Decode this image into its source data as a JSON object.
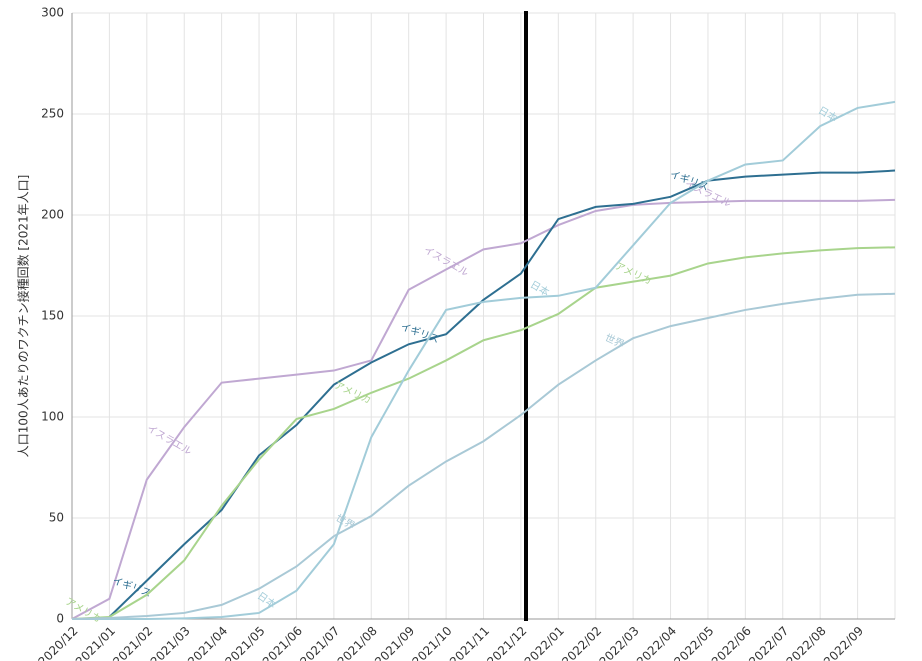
{
  "chart_data": {
    "type": "line",
    "y_label": "人口100人あたりのワクチン接種回数 [2021年人口]",
    "categories": [
      "2020/12",
      "2021/01",
      "2021/02",
      "2021/03",
      "2021/04",
      "2021/05",
      "2021/06",
      "2021/07",
      "2021/08",
      "2021/09",
      "2021/10",
      "2021/11",
      "2021/12",
      "2022/01",
      "2022/02",
      "2022/03",
      "2022/04",
      "2022/05",
      "2022/06",
      "2022/07",
      "2022/08",
      "2022/09",
      null
    ],
    "ylim": [
      0,
      300
    ],
    "yticks": [
      0,
      50,
      100,
      150,
      200,
      250,
      300
    ],
    "grid": true,
    "series": [
      {
        "name": "イスラエル",
        "color": "#c0a8d2",
        "values": [
          0,
          10,
          69,
          95,
          117,
          119,
          121,
          123,
          128,
          163,
          173,
          183,
          186,
          195,
          202,
          205,
          206,
          206.5,
          207,
          207,
          207,
          207,
          207.5
        ]
      },
      {
        "name": "イギリス",
        "color": "#2e6f91",
        "values": [
          null,
          1,
          19,
          37,
          54,
          81,
          96,
          116,
          127,
          136,
          141,
          158,
          171,
          198,
          204,
          205.5,
          209,
          217,
          219,
          220,
          221,
          221,
          222
        ]
      },
      {
        "name": "アメリカ",
        "color": "#a8d48c",
        "values": [
          0,
          1,
          12,
          29,
          56,
          79,
          99,
          104,
          112,
          119,
          128,
          138,
          143,
          151,
          164,
          167,
          170,
          176,
          179,
          181,
          182.5,
          183.6,
          184
        ]
      },
      {
        "name": "日本",
        "color": "#a2ccd9",
        "values": [
          0,
          0,
          0,
          0.3,
          1,
          3,
          14,
          37,
          90,
          123,
          153,
          157,
          159,
          160,
          164,
          185,
          206,
          217,
          225,
          227,
          244,
          253,
          256
        ]
      },
      {
        "name": "世界",
        "color": "#a9c9d6",
        "values": [
          0,
          0.5,
          1.5,
          3,
          7,
          15,
          26,
          41,
          51,
          66,
          78,
          88,
          101,
          116,
          128,
          139,
          145,
          149,
          153,
          156,
          158.5,
          160.5,
          161
        ]
      }
    ]
  }
}
